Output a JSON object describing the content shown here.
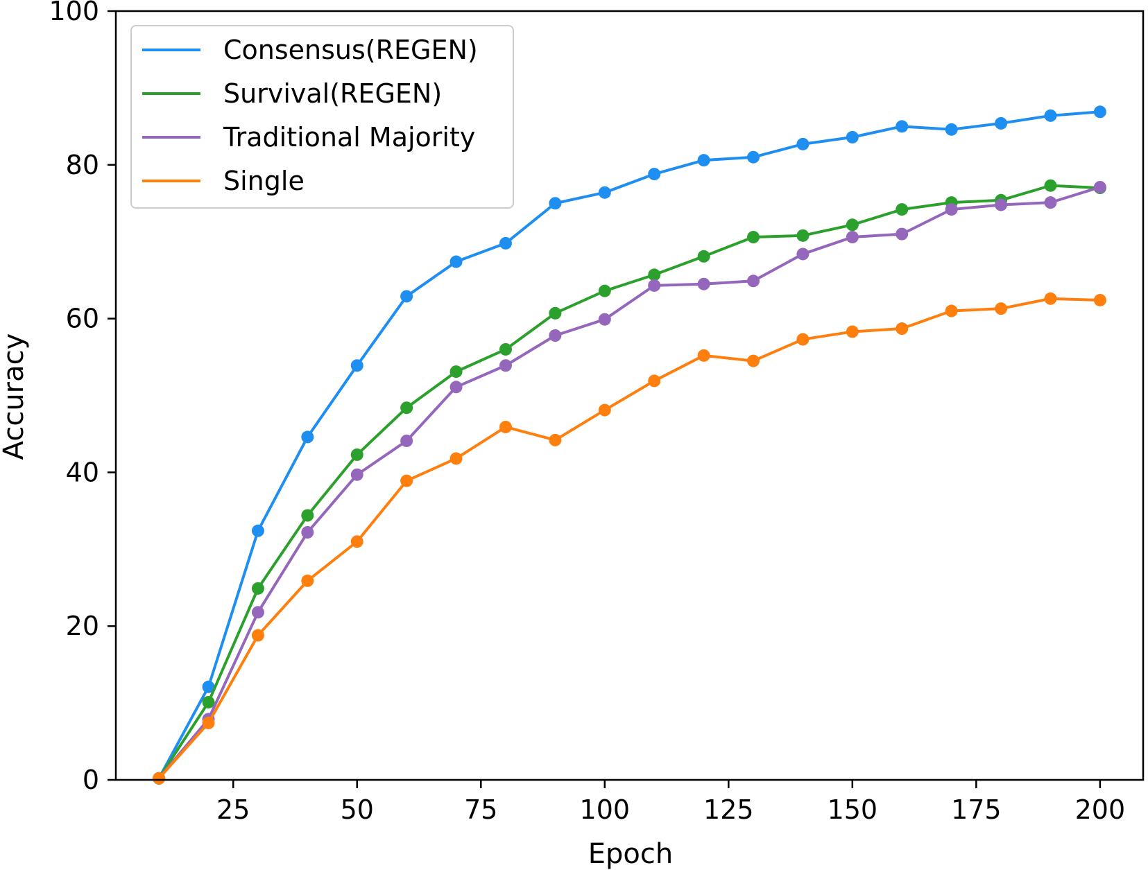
{
  "chart_data": {
    "type": "line",
    "xlabel": "Epoch",
    "ylabel": "Accuracy",
    "xlim": [
      1.3,
      208.7
    ],
    "ylim": [
      0,
      100
    ],
    "xticks": [
      25,
      50,
      75,
      100,
      125,
      150,
      175,
      200
    ],
    "yticks": [
      0,
      20,
      40,
      60,
      80,
      100
    ],
    "legend_position": "top-left",
    "x": [
      10,
      20,
      30,
      40,
      50,
      60,
      70,
      80,
      90,
      100,
      110,
      120,
      130,
      140,
      150,
      160,
      170,
      180,
      190,
      200
    ],
    "series": [
      {
        "name": "Consensus(REGEN)",
        "color": "#1f8ef1",
        "values": [
          0.2,
          12.1,
          32.4,
          44.6,
          53.9,
          62.9,
          67.4,
          69.8,
          75.0,
          76.4,
          78.8,
          80.6,
          81.0,
          82.7,
          83.6,
          85.0,
          84.6,
          85.4,
          86.4,
          86.9
        ]
      },
      {
        "name": "Survival(REGEN)",
        "color": "#2ca02c",
        "values": [
          0.2,
          10.1,
          24.9,
          34.4,
          42.3,
          48.4,
          53.1,
          56.0,
          60.7,
          63.6,
          65.7,
          68.1,
          70.6,
          70.8,
          72.2,
          74.2,
          75.1,
          75.4,
          77.3,
          77.0
        ]
      },
      {
        "name": "Traditional Majority",
        "color": "#9467bd",
        "values": [
          0.2,
          7.9,
          21.8,
          32.2,
          39.7,
          44.1,
          51.1,
          53.9,
          57.8,
          59.9,
          64.3,
          64.5,
          64.9,
          68.4,
          70.6,
          71.0,
          74.2,
          74.8,
          75.1,
          77.1
        ]
      },
      {
        "name": "Single",
        "color": "#ff7f0e",
        "values": [
          0.2,
          7.4,
          18.8,
          25.9,
          31.0,
          38.9,
          41.8,
          45.9,
          44.2,
          48.1,
          51.9,
          55.2,
          54.5,
          57.3,
          58.3,
          58.7,
          61.0,
          61.3,
          62.6,
          62.4
        ]
      }
    ]
  }
}
